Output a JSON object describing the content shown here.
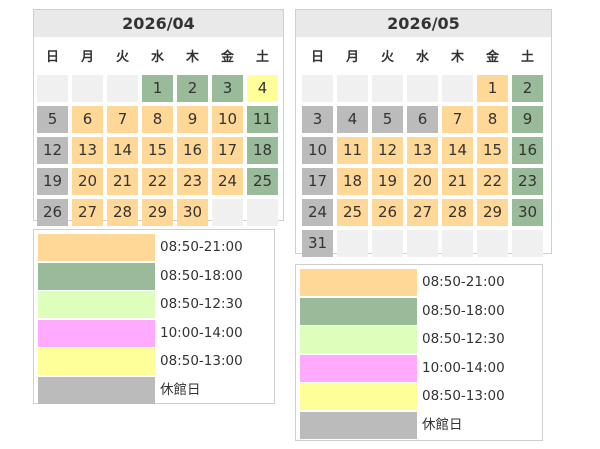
{
  "colors": {
    "A": "#ffd898",
    "B": "#99bb99",
    "C": "#ddffbb",
    "D": "#ffaaff",
    "E": "#ffff99",
    "X": "#bbbbbb",
    "empty": "#f0f0f0"
  },
  "weekdays": [
    "日",
    "月",
    "火",
    "水",
    "木",
    "金",
    "土"
  ],
  "calendars": [
    {
      "title": "2026/04",
      "cells": [
        {
          "d": "",
          "c": "empty"
        },
        {
          "d": "",
          "c": "empty"
        },
        {
          "d": "",
          "c": "empty"
        },
        {
          "d": "1",
          "c": "B"
        },
        {
          "d": "2",
          "c": "B"
        },
        {
          "d": "3",
          "c": "B"
        },
        {
          "d": "4",
          "c": "E"
        },
        {
          "d": "5",
          "c": "X"
        },
        {
          "d": "6",
          "c": "A"
        },
        {
          "d": "7",
          "c": "A"
        },
        {
          "d": "8",
          "c": "A"
        },
        {
          "d": "9",
          "c": "A"
        },
        {
          "d": "10",
          "c": "A"
        },
        {
          "d": "11",
          "c": "B"
        },
        {
          "d": "12",
          "c": "X"
        },
        {
          "d": "13",
          "c": "A"
        },
        {
          "d": "14",
          "c": "A"
        },
        {
          "d": "15",
          "c": "A"
        },
        {
          "d": "16",
          "c": "A"
        },
        {
          "d": "17",
          "c": "A"
        },
        {
          "d": "18",
          "c": "B"
        },
        {
          "d": "19",
          "c": "X"
        },
        {
          "d": "20",
          "c": "A"
        },
        {
          "d": "21",
          "c": "A"
        },
        {
          "d": "22",
          "c": "A"
        },
        {
          "d": "23",
          "c": "A"
        },
        {
          "d": "24",
          "c": "A"
        },
        {
          "d": "25",
          "c": "B"
        },
        {
          "d": "26",
          "c": "X"
        },
        {
          "d": "27",
          "c": "A"
        },
        {
          "d": "28",
          "c": "A"
        },
        {
          "d": "29",
          "c": "A"
        },
        {
          "d": "30",
          "c": "A"
        },
        {
          "d": "",
          "c": "empty"
        },
        {
          "d": "",
          "c": "empty"
        }
      ]
    },
    {
      "title": "2026/05",
      "cells": [
        {
          "d": "",
          "c": "empty"
        },
        {
          "d": "",
          "c": "empty"
        },
        {
          "d": "",
          "c": "empty"
        },
        {
          "d": "",
          "c": "empty"
        },
        {
          "d": "",
          "c": "empty"
        },
        {
          "d": "1",
          "c": "A"
        },
        {
          "d": "2",
          "c": "B"
        },
        {
          "d": "3",
          "c": "X"
        },
        {
          "d": "4",
          "c": "X"
        },
        {
          "d": "5",
          "c": "X"
        },
        {
          "d": "6",
          "c": "X"
        },
        {
          "d": "7",
          "c": "A"
        },
        {
          "d": "8",
          "c": "A"
        },
        {
          "d": "9",
          "c": "B"
        },
        {
          "d": "10",
          "c": "X"
        },
        {
          "d": "11",
          "c": "A"
        },
        {
          "d": "12",
          "c": "A"
        },
        {
          "d": "13",
          "c": "A"
        },
        {
          "d": "14",
          "c": "A"
        },
        {
          "d": "15",
          "c": "A"
        },
        {
          "d": "16",
          "c": "B"
        },
        {
          "d": "17",
          "c": "X"
        },
        {
          "d": "18",
          "c": "A"
        },
        {
          "d": "19",
          "c": "A"
        },
        {
          "d": "20",
          "c": "A"
        },
        {
          "d": "21",
          "c": "A"
        },
        {
          "d": "22",
          "c": "A"
        },
        {
          "d": "23",
          "c": "B"
        },
        {
          "d": "24",
          "c": "X"
        },
        {
          "d": "25",
          "c": "A"
        },
        {
          "d": "26",
          "c": "A"
        },
        {
          "d": "27",
          "c": "A"
        },
        {
          "d": "28",
          "c": "A"
        },
        {
          "d": "29",
          "c": "A"
        },
        {
          "d": "30",
          "c": "B"
        },
        {
          "d": "31",
          "c": "X"
        },
        {
          "d": "",
          "c": "empty"
        },
        {
          "d": "",
          "c": "empty"
        },
        {
          "d": "",
          "c": "empty"
        },
        {
          "d": "",
          "c": "empty"
        },
        {
          "d": "",
          "c": "empty"
        },
        {
          "d": "",
          "c": "empty"
        }
      ]
    }
  ],
  "legends": [
    {
      "items": [
        {
          "c": "A",
          "label": "08:50-21:00"
        },
        {
          "c": "B",
          "label": "08:50-18:00"
        },
        {
          "c": "C",
          "label": "08:50-12:30"
        },
        {
          "c": "D",
          "label": "10:00-14:00"
        },
        {
          "c": "E",
          "label": "08:50-13:00"
        },
        {
          "c": "X",
          "label": "休館日"
        }
      ]
    },
    {
      "items": [
        {
          "c": "A",
          "label": "08:50-21:00"
        },
        {
          "c": "B",
          "label": "08:50-18:00"
        },
        {
          "c": "C",
          "label": "08:50-12:30"
        },
        {
          "c": "D",
          "label": "10:00-14:00"
        },
        {
          "c": "E",
          "label": "08:50-13:00"
        },
        {
          "c": "X",
          "label": "休館日"
        }
      ]
    }
  ]
}
